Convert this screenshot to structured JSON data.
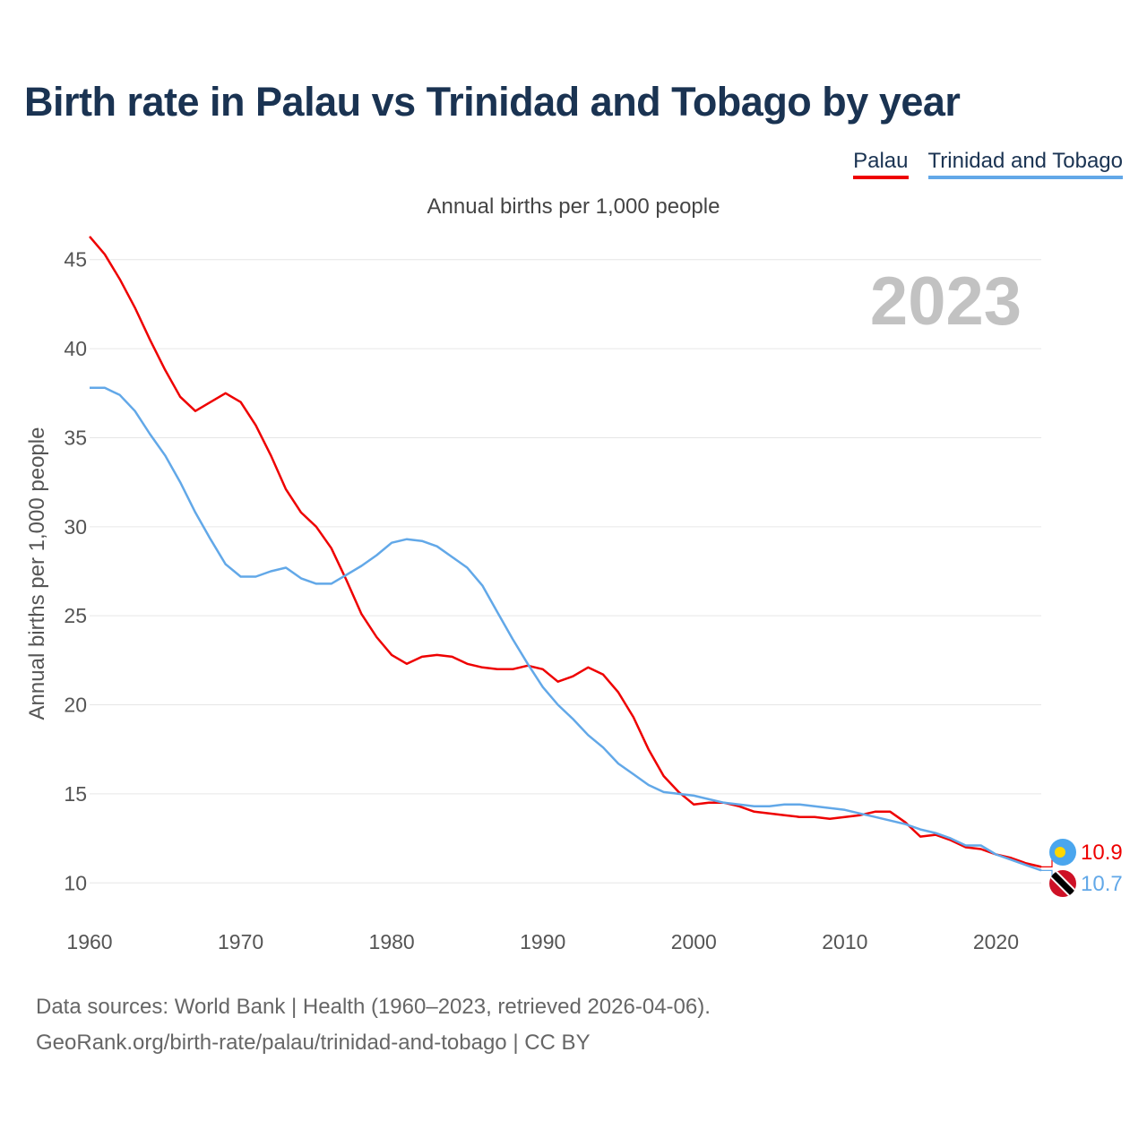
{
  "title": "Birth rate in Palau vs Trinidad and Tobago by year",
  "legend": {
    "palau": "Palau",
    "tt": "Trinidad and Tobago"
  },
  "subtitle": "Annual births per 1,000 people",
  "year_watermark": "2023",
  "footer": {
    "line1": "Data sources: World Bank | Health (1960–2023, retrieved 2026-04-06).",
    "line2": "GeoRank.org/birth-rate/palau/trinidad-and-tobago | CC BY"
  },
  "chart_data": {
    "type": "line",
    "title": "Birth rate in Palau vs Trinidad and Tobago by year",
    "xlabel": "",
    "ylabel": "Annual births per 1,000 people",
    "xlim": [
      1960,
      2023
    ],
    "ylim": [
      8,
      47
    ],
    "xticks": [
      1960,
      1970,
      1980,
      1990,
      2000,
      2010,
      2020
    ],
    "yticks": [
      10,
      15,
      20,
      25,
      30,
      35,
      40,
      45
    ],
    "grid": true,
    "x": [
      1960,
      1961,
      1962,
      1963,
      1964,
      1965,
      1966,
      1967,
      1968,
      1969,
      1970,
      1971,
      1972,
      1973,
      1974,
      1975,
      1976,
      1977,
      1978,
      1979,
      1980,
      1981,
      1982,
      1983,
      1984,
      1985,
      1986,
      1987,
      1988,
      1989,
      1990,
      1991,
      1992,
      1993,
      1994,
      1995,
      1996,
      1997,
      1998,
      1999,
      2000,
      2001,
      2002,
      2003,
      2004,
      2005,
      2006,
      2007,
      2008,
      2009,
      2010,
      2011,
      2012,
      2013,
      2014,
      2015,
      2016,
      2017,
      2018,
      2019,
      2020,
      2021,
      2022,
      2023
    ],
    "series": [
      {
        "name": "Palau",
        "color": "#ee0000",
        "end_label": "10.9",
        "values": [
          46.3,
          45.3,
          43.9,
          42.3,
          40.5,
          38.8,
          37.3,
          36.5,
          37.0,
          37.5,
          37.0,
          35.7,
          34.0,
          32.1,
          30.8,
          30.0,
          28.8,
          27.0,
          25.1,
          23.8,
          22.8,
          22.3,
          22.7,
          22.8,
          22.7,
          22.3,
          22.1,
          22.0,
          22.0,
          22.2,
          22.0,
          21.3,
          21.6,
          22.1,
          21.7,
          20.7,
          19.3,
          17.5,
          16.0,
          15.1,
          14.4,
          14.5,
          14.5,
          14.3,
          14.0,
          13.9,
          13.8,
          13.7,
          13.7,
          13.6,
          13.7,
          13.8,
          14.0,
          14.0,
          13.4,
          12.6,
          12.7,
          12.4,
          12.0,
          11.9,
          11.6,
          11.4,
          11.1,
          10.9
        ]
      },
      {
        "name": "Trinidad and Tobago",
        "color": "#62a8e8",
        "end_label": "10.7",
        "values": [
          37.8,
          37.8,
          37.4,
          36.5,
          35.2,
          34.0,
          32.5,
          30.8,
          29.3,
          27.9,
          27.2,
          27.2,
          27.5,
          27.7,
          27.1,
          26.8,
          26.8,
          27.3,
          27.8,
          28.4,
          29.1,
          29.3,
          29.2,
          28.9,
          28.3,
          27.7,
          26.7,
          25.2,
          23.7,
          22.3,
          21.0,
          20.0,
          19.2,
          18.3,
          17.6,
          16.7,
          16.1,
          15.5,
          15.1,
          15.0,
          14.9,
          14.7,
          14.5,
          14.4,
          14.3,
          14.3,
          14.4,
          14.4,
          14.3,
          14.2,
          14.1,
          13.9,
          13.7,
          13.5,
          13.3,
          13.0,
          12.8,
          12.5,
          12.1,
          12.1,
          11.6,
          11.3,
          11.0,
          10.7
        ]
      }
    ]
  }
}
